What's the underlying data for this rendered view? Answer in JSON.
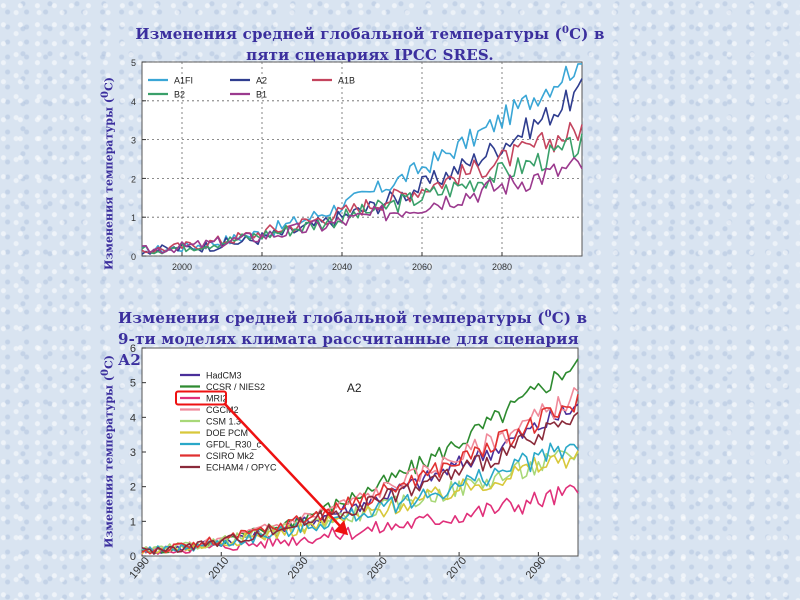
{
  "title1": {
    "pre": "Изменения средней глобальной температуры (",
    "sup": "0",
    "post": "C) в пяти сценариях IPCC SRES."
  },
  "title2": {
    "pre": "Изменения средней глобальной температуры (",
    "sup": "0",
    "post": "C) в 9-ти моделях климата рассчитанные для сценария А2."
  },
  "ylabel": {
    "pre": "Изменения температуры (",
    "sup": "0",
    "post": "C)"
  },
  "chart_data": [
    {
      "type": "line",
      "xlim": [
        1990,
        2100
      ],
      "ylim": [
        0,
        5
      ],
      "xticks": [
        "2000",
        "2020",
        "2040",
        "2060",
        "2080"
      ],
      "yticks": [
        "0",
        "1",
        "2",
        "3",
        "4",
        "5"
      ],
      "grid": true,
      "legend_position": "top-left",
      "series": [
        {
          "name": "A1FI",
          "color": "#3aa6d6",
          "end": 4.8,
          "coef": 3.2,
          "pow": 1.9
        },
        {
          "name": "A2",
          "color": "#2f3d8f",
          "end": 4.0,
          "coef": 2.85,
          "pow": 2.1
        },
        {
          "name": "A1B",
          "color": "#c4445e",
          "end": 3.05,
          "coef": 2.6,
          "pow": 1.55
        },
        {
          "name": "B2",
          "color": "#3aa06a",
          "end": 2.6,
          "coef": 2.15,
          "pow": 1.55
        },
        {
          "name": "B1",
          "color": "#9b3a8e",
          "end": 2.1,
          "coef": 1.75,
          "pow": 1.45
        }
      ]
    },
    {
      "type": "line",
      "xlim": [
        1990,
        2100
      ],
      "ylim": [
        0,
        6
      ],
      "xticks": [
        "1990",
        "2010",
        "2030",
        "2050",
        "2070",
        "2090"
      ],
      "yticks": [
        "0",
        "1",
        "2",
        "3",
        "4",
        "5",
        "6"
      ],
      "title": "A2",
      "legend_position": "top-left",
      "annotation": {
        "highlighted": "MRI2",
        "arrow_to": [
          2042,
          0.6
        ]
      },
      "series": [
        {
          "name": "HadCM3",
          "color": "#4a2f9a",
          "end": 4.1,
          "coef": 4.0,
          "pow": 1.7
        },
        {
          "name": "CCSR / NIES2",
          "color": "#2e8b30",
          "end": 5.4,
          "coef": 5.2,
          "pow": 1.8
        },
        {
          "name": "MRI2",
          "color": "#e0307a",
          "end": 1.6,
          "coef": 1.2,
          "pow": 1.7
        },
        {
          "name": "CGCM2",
          "color": "#f08a9a",
          "end": 4.4,
          "coef": 4.1,
          "pow": 1.6
        },
        {
          "name": "CSM 1.3",
          "color": "#a8d878",
          "end": 2.7,
          "coef": 2.55,
          "pow": 1.4
        },
        {
          "name": "DOE PCM",
          "color": "#d8c83a",
          "end": 2.7,
          "coef": 2.5,
          "pow": 1.5
        },
        {
          "name": "GFDL_R30_c",
          "color": "#2aa8c8",
          "end": 3.0,
          "coef": 3.3,
          "pow": 1.6
        },
        {
          "name": "CSIRO Mk2",
          "color": "#e03030",
          "end": 4.2,
          "coef": 3.9,
          "pow": 1.6
        },
        {
          "name": "ECHAM4 / OPYC",
          "color": "#8a2a3a",
          "end": 3.7,
          "coef": 3.4,
          "pow": 1.6
        }
      ]
    }
  ]
}
